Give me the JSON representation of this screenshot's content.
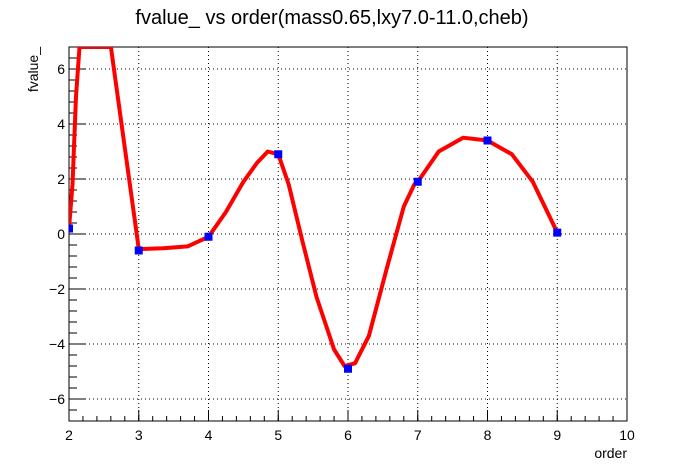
{
  "chart_data": {
    "type": "line",
    "title": "fvalue_ vs order(mass0.65,lxy7.0-11.0,cheb)",
    "xlabel": "order",
    "ylabel": "fvalue_",
    "xlim": [
      2,
      10
    ],
    "ylim": [
      -6.8,
      6.8
    ],
    "x_ticks": [
      2,
      3,
      4,
      5,
      6,
      7,
      8,
      9,
      10
    ],
    "y_ticks": [
      -6,
      -4,
      -2,
      0,
      2,
      4,
      6
    ],
    "grid": true,
    "legend": "none",
    "series": [
      {
        "kind": "markers",
        "color": "#0000ff",
        "marker": "square",
        "x": [
          2,
          3,
          4,
          5,
          6,
          7,
          8,
          9
        ],
        "y": [
          0.2,
          -0.6,
          -0.1,
          2.9,
          -4.9,
          1.9,
          3.4,
          0.05
        ]
      },
      {
        "kind": "curve",
        "color": "#ff0000",
        "x": [
          2,
          2.05,
          2.1,
          2.15,
          2.6,
          3.0,
          3.35,
          3.7,
          4.0,
          4.25,
          4.5,
          4.7,
          4.85,
          5.0,
          5.15,
          5.35,
          5.55,
          5.8,
          5.95,
          6.1,
          6.3,
          6.55,
          6.8,
          6.95,
          7.0,
          7.3,
          7.65,
          8.0,
          8.35,
          8.65,
          9.0
        ],
        "y": [
          0.2,
          1.8,
          5.0,
          6.8,
          6.8,
          -0.55,
          -0.52,
          -0.45,
          -0.1,
          0.8,
          1.9,
          2.6,
          3.0,
          2.9,
          1.8,
          -0.3,
          -2.3,
          -4.2,
          -4.8,
          -4.7,
          -3.7,
          -1.3,
          1.0,
          1.8,
          1.9,
          3.0,
          3.5,
          3.4,
          2.9,
          1.9,
          0.05
        ]
      }
    ]
  }
}
